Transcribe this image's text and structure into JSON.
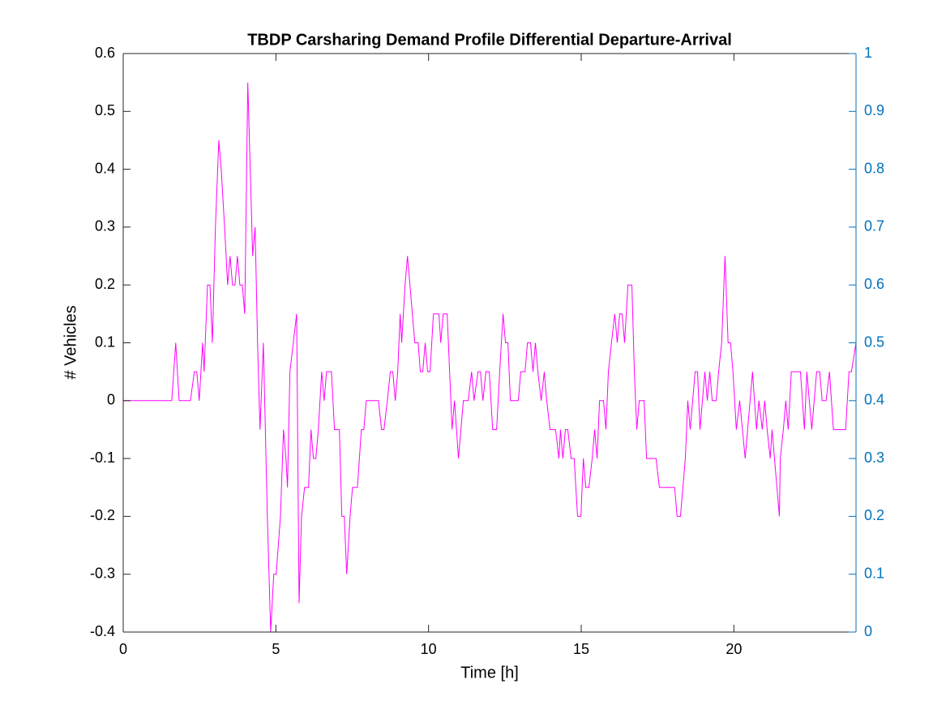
{
  "chart_data": {
    "type": "line",
    "title": "TBDP Carsharing Demand Profile Differential Departure-Arrival",
    "x_label": "Time [h]",
    "y_label": "# Vehicles",
    "xlim": [
      0,
      24
    ],
    "xticks": [
      0,
      5,
      10,
      15,
      20
    ],
    "ylim": [
      -0.4,
      0.6
    ],
    "yticks": [
      -0.4,
      -0.3,
      -0.2,
      -0.1,
      0,
      0.1,
      0.2,
      0.3,
      0.4,
      0.5,
      0.6
    ],
    "y2lim": [
      0,
      1
    ],
    "y2ticks": [
      0,
      0.1,
      0.2,
      0.3,
      0.4,
      0.5,
      0.6,
      0.7,
      0.8,
      0.9,
      1
    ],
    "y2color": "#0072bd",
    "grid": false,
    "series": [
      {
        "color": "#ff00ff",
        "x": [
          0,
          1.59,
          1.72,
          1.83,
          2.2,
          2.33,
          2.41,
          2.49,
          2.6,
          2.65,
          2.76,
          2.84,
          2.92,
          3.02,
          3.13,
          3.21,
          3.32,
          3.42,
          3.5,
          3.58,
          3.66,
          3.74,
          3.82,
          3.9,
          3.98,
          4.08,
          4.16,
          4.24,
          4.32,
          4.4,
          4.48,
          4.59,
          4.72,
          4.83,
          4.93,
          5.01,
          5.15,
          5.25,
          5.33,
          5.38,
          5.46,
          5.57,
          5.68,
          5.76,
          5.84,
          5.94,
          6.07,
          6.15,
          6.23,
          6.31,
          6.39,
          6.5,
          6.58,
          6.66,
          6.82,
          6.92,
          7.08,
          7.16,
          7.24,
          7.32,
          7.43,
          7.51,
          7.67,
          7.8,
          7.88,
          7.96,
          8.36,
          8.46,
          8.54,
          8.65,
          8.75,
          8.83,
          8.91,
          8.99,
          9.07,
          9.12,
          9.23,
          9.31,
          9.39,
          9.47,
          9.55,
          9.66,
          9.73,
          9.81,
          9.89,
          9.97,
          10.05,
          10.16,
          10.34,
          10.4,
          10.48,
          10.61,
          10.69,
          10.77,
          10.85,
          10.98,
          11.06,
          11.14,
          11.3,
          11.41,
          11.49,
          11.62,
          11.7,
          11.78,
          11.88,
          11.99,
          12.1,
          12.23,
          12.33,
          12.44,
          12.52,
          12.6,
          12.68,
          12.94,
          13.02,
          13.16,
          13.24,
          13.34,
          13.42,
          13.5,
          13.58,
          13.69,
          13.79,
          13.87,
          13.98,
          14.16,
          14.27,
          14.32,
          14.4,
          14.48,
          14.56,
          14.67,
          14.77,
          14.88,
          14.99,
          15.07,
          15.15,
          15.25,
          15.36,
          15.44,
          15.52,
          15.6,
          15.73,
          15.81,
          15.89,
          15.99,
          16.1,
          16.18,
          16.26,
          16.34,
          16.42,
          16.53,
          16.66,
          16.74,
          16.82,
          16.9,
          17.06,
          17.14,
          17.45,
          17.56,
          18.06,
          18.14,
          18.25,
          18.33,
          18.41,
          18.49,
          18.57,
          18.73,
          18.81,
          18.89,
          19.05,
          19.13,
          19.21,
          19.29,
          19.42,
          19.5,
          19.6,
          19.71,
          19.81,
          19.89,
          19.97,
          20.08,
          20.19,
          20.37,
          20.61,
          20.74,
          20.82,
          20.93,
          21.01,
          21.09,
          21.19,
          21.25,
          21.33,
          21.41,
          21.49,
          21.52,
          21.62,
          21.7,
          21.78,
          21.88,
          22.18,
          22.31,
          22.39,
          22.55,
          22.71,
          22.81,
          22.89,
          23.02,
          23.13,
          23.26,
          23.34,
          23.66,
          23.77,
          23.85,
          24
        ],
        "values": [
          0,
          0,
          0.1,
          0,
          0,
          0.05,
          0.05,
          0,
          0.1,
          0.05,
          0.2,
          0.2,
          0.1,
          0.3,
          0.45,
          0.4,
          0.3,
          0.2,
          0.25,
          0.2,
          0.2,
          0.25,
          0.2,
          0.2,
          0.15,
          0.55,
          0.4,
          0.25,
          0.3,
          0.1,
          -0.05,
          0.1,
          -0.2,
          -0.4,
          -0.3,
          -0.3,
          -0.2,
          -0.05,
          -0.1,
          -0.15,
          0.05,
          0.1,
          0.15,
          -0.35,
          -0.2,
          -0.15,
          -0.15,
          -0.05,
          -0.1,
          -0.1,
          -0.05,
          0.05,
          0,
          0.05,
          0.05,
          -0.05,
          -0.05,
          -0.2,
          -0.2,
          -0.3,
          -0.2,
          -0.15,
          -0.15,
          -0.05,
          -0.05,
          0,
          0,
          -0.05,
          -0.05,
          0,
          0.05,
          0.05,
          0,
          0.05,
          0.15,
          0.1,
          0.2,
          0.25,
          0.2,
          0.15,
          0.1,
          0.1,
          0.05,
          0.05,
          0.1,
          0.05,
          0.05,
          0.15,
          0.15,
          0.1,
          0.15,
          0.15,
          0.05,
          -0.05,
          0,
          -0.1,
          -0.05,
          0,
          0,
          0.05,
          0,
          0.05,
          0.05,
          0,
          0.05,
          0.05,
          -0.05,
          -0.05,
          0.05,
          0.15,
          0.1,
          0.1,
          0,
          0,
          0.05,
          0.05,
          0.1,
          0.1,
          0.05,
          0.1,
          0.05,
          0,
          0.05,
          0,
          -0.05,
          -0.05,
          -0.1,
          -0.05,
          -0.1,
          -0.05,
          -0.05,
          -0.1,
          -0.1,
          -0.2,
          -0.2,
          -0.1,
          -0.15,
          -0.15,
          -0.1,
          -0.05,
          -0.1,
          0,
          0,
          -0.05,
          0.05,
          0.1,
          0.15,
          0.1,
          0.15,
          0.15,
          0.1,
          0.2,
          0.2,
          0.05,
          -0.05,
          0,
          0,
          -0.1,
          -0.1,
          -0.15,
          -0.15,
          -0.2,
          -0.2,
          -0.15,
          -0.1,
          0,
          -0.05,
          0.05,
          0.05,
          -0.05,
          0.05,
          0,
          0.05,
          0,
          0,
          0.05,
          0.1,
          0.25,
          0.1,
          0.1,
          0.05,
          -0.05,
          0,
          -0.1,
          0.05,
          -0.05,
          0,
          -0.05,
          0,
          -0.05,
          -0.1,
          -0.05,
          -0.1,
          -0.15,
          -0.2,
          -0.1,
          -0.05,
          0,
          -0.05,
          0.05,
          0.05,
          -0.05,
          0.05,
          -0.05,
          0.05,
          0.05,
          0,
          0,
          0.05,
          -0.05,
          -0.05,
          -0.05,
          0.05,
          0.05,
          0.1
        ]
      }
    ]
  }
}
